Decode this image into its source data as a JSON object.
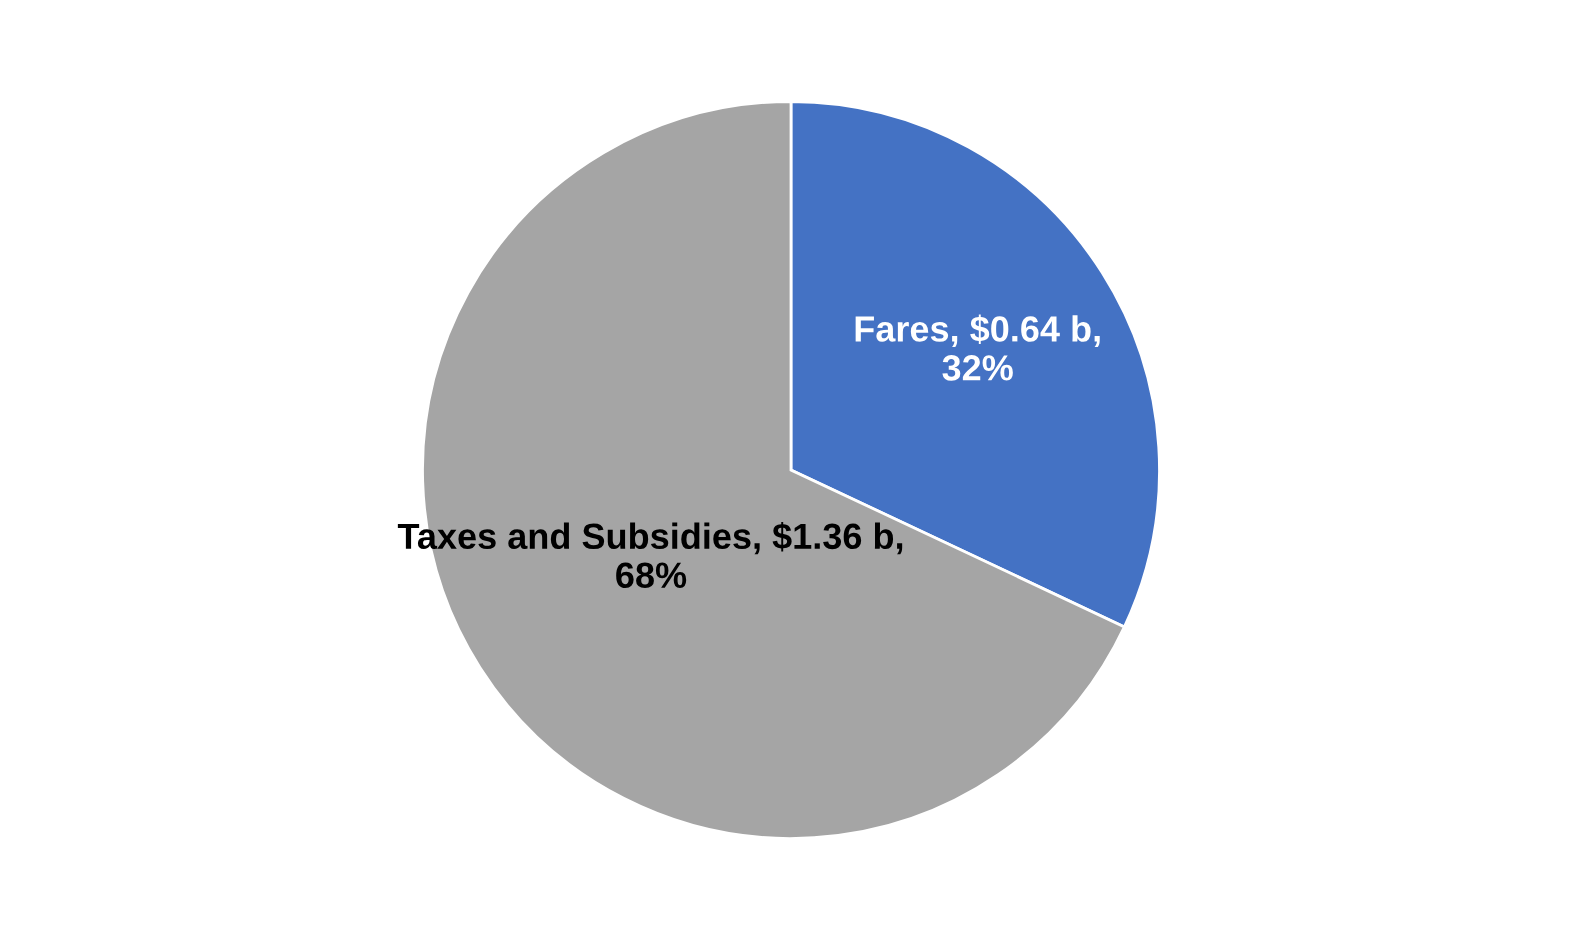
{
  "chart_data": {
    "type": "pie",
    "categories": [
      "Fares",
      "Taxes and Subsidies"
    ],
    "values": [
      0.64,
      1.36
    ],
    "value_labels": [
      "$0.64 b, 32%",
      "$1.36 b, 68%"
    ],
    "colors": [
      "#4472c4",
      "#a5a5a5"
    ]
  }
}
